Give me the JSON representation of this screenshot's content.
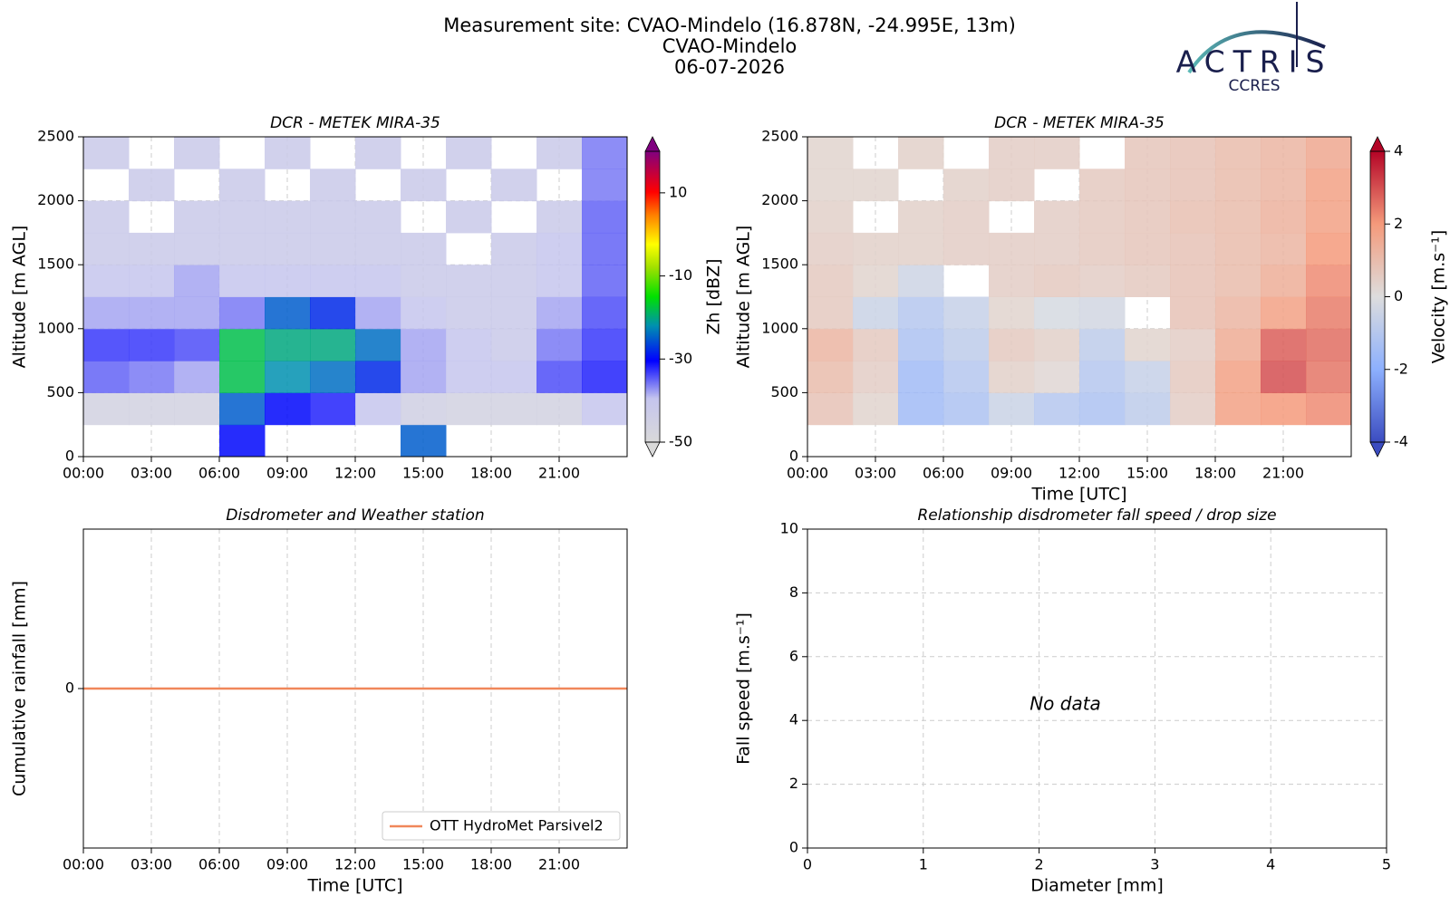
{
  "title": [
    "Measurement site: CVAO-Mindelo (16.878N, -24.995E, 13m)",
    "CVAO-Mindelo",
    "06-07-2026"
  ],
  "logo": {
    "name": "ACTRIS",
    "sub": "CCRES"
  },
  "chart_data": [
    {
      "type": "heatmap",
      "title": "DCR - METEK MIRA-35",
      "ylabel": "Altitude [m AGL]",
      "xlim": [
        0,
        24
      ],
      "ylim": [
        0,
        2500
      ],
      "xticks": [
        {
          "value": 0,
          "label": "00:00"
        },
        {
          "value": 3,
          "label": "03:00"
        },
        {
          "value": 6,
          "label": "06:00"
        },
        {
          "value": 9,
          "label": "09:00"
        },
        {
          "value": 12,
          "label": "12:00"
        },
        {
          "value": 15,
          "label": "15:00"
        },
        {
          "value": 18,
          "label": "18:00"
        },
        {
          "value": 21,
          "label": "21:00"
        }
      ],
      "yticks": [
        0,
        500,
        1000,
        1500,
        2000,
        2500
      ],
      "grid": true,
      "xbins": [
        0,
        2,
        4,
        6,
        8,
        10,
        12,
        14,
        16,
        18,
        20,
        22,
        24
      ],
      "ybins": [
        0,
        250,
        500,
        750,
        1000,
        1250,
        1500,
        1750,
        2000,
        2250,
        2500
      ],
      "z": [
        [
          null,
          null,
          null,
          -30,
          null,
          null,
          null,
          -25,
          null,
          null,
          null,
          null
        ],
        [
          -46,
          -46,
          -46,
          -25,
          -30,
          -32,
          -40,
          -45,
          -46,
          -46,
          -46,
          -40
        ],
        [
          -35,
          -36,
          -38,
          -18,
          -22,
          -24,
          -28,
          -38,
          -40,
          -40,
          -34,
          -32
        ],
        [
          -33,
          -33,
          -34,
          -18,
          -20,
          -20,
          -24,
          -38,
          -40,
          -42,
          -36,
          -33
        ],
        [
          -38,
          -38,
          -38,
          -36,
          -25,
          -28,
          -38,
          -40,
          -42,
          -42,
          -38,
          -34
        ],
        [
          -40,
          -40,
          -38,
          -40,
          -40,
          -40,
          -40,
          -42,
          -42,
          -42,
          -40,
          -35
        ],
        [
          -42,
          -42,
          -42,
          -42,
          -42,
          -42,
          -42,
          -42,
          null,
          -42,
          -40,
          -35
        ],
        [
          -42,
          null,
          -42,
          -42,
          -42,
          -42,
          -42,
          null,
          -42,
          null,
          -42,
          -35
        ],
        [
          null,
          -42,
          null,
          -42,
          null,
          -42,
          null,
          -42,
          null,
          -42,
          null,
          -36
        ],
        [
          -42,
          null,
          -42,
          null,
          -42,
          null,
          -42,
          null,
          -42,
          null,
          -42,
          -36
        ]
      ],
      "colorbar": {
        "label": "Zh [dBZ]",
        "cmap": "reflectivity",
        "zlim": [
          -50,
          20
        ],
        "zticks": [
          -50,
          -30,
          -10,
          10
        ]
      }
    },
    {
      "type": "heatmap",
      "title": "DCR - METEK MIRA-35",
      "xlabel": "Time [UTC]",
      "ylabel": "Altitude [m AGL]",
      "xlim": [
        0,
        24
      ],
      "ylim": [
        0,
        2500
      ],
      "xticks": [
        {
          "value": 0,
          "label": "00:00"
        },
        {
          "value": 3,
          "label": "03:00"
        },
        {
          "value": 6,
          "label": "06:00"
        },
        {
          "value": 9,
          "label": "09:00"
        },
        {
          "value": 12,
          "label": "12:00"
        },
        {
          "value": 15,
          "label": "15:00"
        },
        {
          "value": 18,
          "label": "18:00"
        },
        {
          "value": 21,
          "label": "21:00"
        }
      ],
      "yticks": [
        0,
        500,
        1000,
        1500,
        2000,
        2500
      ],
      "grid": true,
      "xbins": [
        0,
        2,
        4,
        6,
        8,
        10,
        12,
        14,
        16,
        18,
        20,
        22,
        24
      ],
      "ybins": [
        0,
        250,
        500,
        750,
        1000,
        1250,
        1500,
        1750,
        2000,
        2250,
        2500
      ],
      "z": [
        [
          null,
          null,
          null,
          null,
          null,
          null,
          null,
          null,
          null,
          null,
          null,
          null
        ],
        [
          0.8,
          0.3,
          -1.5,
          -1.2,
          -0.5,
          -1.0,
          -1.2,
          -0.8,
          0.5,
          1.8,
          2.0,
          2.2
        ],
        [
          1.0,
          0.5,
          -1.5,
          -1.0,
          0.4,
          0.2,
          -1.0,
          -0.6,
          0.6,
          1.8,
          3.0,
          2.5
        ],
        [
          1.2,
          0.6,
          -1.2,
          -0.8,
          0.6,
          0.4,
          -0.8,
          0.3,
          0.5,
          1.5,
          2.8,
          2.6
        ],
        [
          0.6,
          -0.5,
          -1.0,
          -0.6,
          0.3,
          -0.2,
          -0.3,
          null,
          0.8,
          1.2,
          1.8,
          2.4
        ],
        [
          0.6,
          0.3,
          -0.4,
          null,
          0.5,
          0.6,
          0.5,
          0.6,
          0.8,
          1.0,
          1.4,
          2.2
        ],
        [
          0.5,
          0.4,
          0.4,
          0.5,
          0.5,
          0.5,
          0.6,
          0.7,
          0.8,
          1.0,
          1.2,
          2.0
        ],
        [
          0.4,
          null,
          0.4,
          0.5,
          null,
          0.5,
          0.6,
          0.7,
          0.9,
          1.0,
          1.3,
          1.8
        ],
        [
          0.3,
          0.3,
          null,
          0.4,
          0.5,
          null,
          0.6,
          0.7,
          0.8,
          1.0,
          1.2,
          1.8
        ],
        [
          0.3,
          null,
          0.4,
          null,
          0.5,
          0.5,
          null,
          0.7,
          0.8,
          1.0,
          1.2,
          1.6
        ]
      ],
      "colorbar": {
        "label": "Velocity [m.s⁻¹]",
        "cmap": "coolwarm",
        "zlim": [
          -4,
          4
        ],
        "zticks": [
          -4,
          -2,
          0,
          2,
          4
        ]
      }
    },
    {
      "type": "line",
      "title": "Disdrometer and Weather station",
      "xlabel": "Time [UTC]",
      "ylabel": "Cumulative rainfall [mm]",
      "xlim": [
        0,
        24
      ],
      "ylim": [
        -0.055,
        0.055
      ],
      "xticks": [
        {
          "value": 0,
          "label": "00:00"
        },
        {
          "value": 3,
          "label": "03:00"
        },
        {
          "value": 6,
          "label": "06:00"
        },
        {
          "value": 9,
          "label": "09:00"
        },
        {
          "value": 12,
          "label": "12:00"
        },
        {
          "value": 15,
          "label": "15:00"
        },
        {
          "value": 18,
          "label": "18:00"
        },
        {
          "value": 21,
          "label": "21:00"
        }
      ],
      "yticks": [
        0
      ],
      "grid": true,
      "legend": "lower right",
      "x": [
        0,
        24
      ],
      "series": [
        {
          "name": "OTT HydroMet Parsivel2",
          "color": "#f0875a",
          "values": [
            0,
            0
          ]
        }
      ]
    },
    {
      "type": "scatter",
      "title": "Relationship disdrometer fall speed / drop size",
      "xlabel": "Diameter [mm]",
      "ylabel": "Fall speed [m.s⁻¹]",
      "xlim": [
        0,
        5
      ],
      "ylim": [
        0,
        10
      ],
      "xticks": [
        0,
        1,
        2,
        3,
        4,
        5
      ],
      "yticks": [
        0,
        2,
        4,
        6,
        8,
        10
      ],
      "grid": true,
      "annotation": "No data",
      "series": []
    }
  ]
}
